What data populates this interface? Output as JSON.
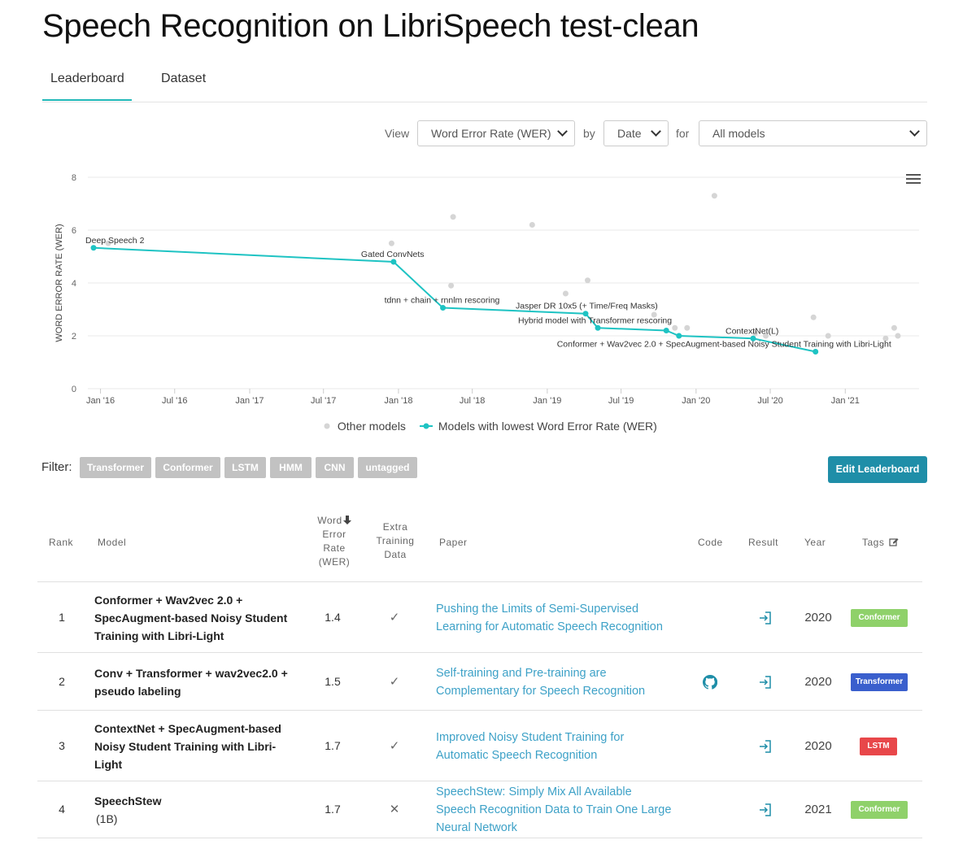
{
  "page": {
    "title": "Speech Recognition on LibriSpeech test-clean"
  },
  "tabs": [
    {
      "label": "Leaderboard"
    },
    {
      "label": "Dataset"
    }
  ],
  "controls": {
    "view_label": "View",
    "view_value": "Word Error Rate (WER)",
    "by_label": "by",
    "by_value": "Date",
    "for_label": "for",
    "for_value": "All models"
  },
  "legend": {
    "other": "Other models",
    "best": "Models with lowest Word Error Rate (WER)"
  },
  "colors": {
    "accent": "#21b8b8",
    "line": "#1ec3c3",
    "other_dot": "#d5d5d5",
    "button": "#1f8ea8",
    "link": "#3da1c7"
  },
  "chart_data": {
    "type": "line",
    "ylabel": "WORD ERROR RATE (WER)",
    "ylim": [
      0,
      8
    ],
    "yticks": [
      0,
      2,
      4,
      6,
      8
    ],
    "xlim": [
      "2015-12-01",
      "2021-07-01"
    ],
    "xticks": [
      {
        "date": "2016-01-01",
        "label": "Jan '16"
      },
      {
        "date": "2016-07-01",
        "label": "Jul '16"
      },
      {
        "date": "2017-01-01",
        "label": "Jan '17"
      },
      {
        "date": "2017-07-01",
        "label": "Jul '17"
      },
      {
        "date": "2018-01-01",
        "label": "Jan '18"
      },
      {
        "date": "2018-07-01",
        "label": "Jul '18"
      },
      {
        "date": "2019-01-01",
        "label": "Jan '19"
      },
      {
        "date": "2019-07-01",
        "label": "Jul '19"
      },
      {
        "date": "2020-01-01",
        "label": "Jan '20"
      },
      {
        "date": "2020-07-01",
        "label": "Jul '20"
      },
      {
        "date": "2021-01-01",
        "label": "Jan '21"
      }
    ],
    "grid": true,
    "legend_position": "bottom",
    "series": [
      {
        "name": "Models with lowest Word Error Rate (WER)",
        "points": [
          {
            "x": "2015-12-15",
            "y": 5.33,
            "label": "Deep Speech 2"
          },
          {
            "x": "2017-12-20",
            "y": 4.8,
            "label": "Gated ConvNets"
          },
          {
            "x": "2018-04-20",
            "y": 3.06,
            "label": "tdnn + chain + rnnlm rescoring"
          },
          {
            "x": "2019-04-05",
            "y": 2.84,
            "label": "Jasper DR 10x5 (+ Time/Freq Masks)"
          },
          {
            "x": "2019-05-05",
            "y": 2.3,
            "label": "Hybrid model with Transformer rescoring"
          },
          {
            "x": "2019-10-20",
            "y": 2.2,
            "label": ""
          },
          {
            "x": "2019-11-20",
            "y": 2.0,
            "label": ""
          },
          {
            "x": "2020-05-20",
            "y": 1.9,
            "label": "ContextNet(L)"
          },
          {
            "x": "2020-10-20",
            "y": 1.4,
            "label": "Conformer + Wav2vec 2.0 + SpecAugment-based Noisy Student Training with Libri-Light"
          }
        ]
      },
      {
        "name": "Other models",
        "points": [
          {
            "x": "2016-01-20",
            "y": 5.5
          },
          {
            "x": "2017-12-15",
            "y": 5.5
          },
          {
            "x": "2018-05-15",
            "y": 6.5
          },
          {
            "x": "2018-05-10",
            "y": 3.9
          },
          {
            "x": "2018-11-25",
            "y": 6.2
          },
          {
            "x": "2019-02-15",
            "y": 3.6
          },
          {
            "x": "2019-04-10",
            "y": 4.1
          },
          {
            "x": "2019-09-20",
            "y": 2.8
          },
          {
            "x": "2019-11-10",
            "y": 2.3
          },
          {
            "x": "2019-12-10",
            "y": 2.3
          },
          {
            "x": "2020-02-15",
            "y": 7.3
          },
          {
            "x": "2020-05-25",
            "y": 2.1
          },
          {
            "x": "2020-06-20",
            "y": 2.0
          },
          {
            "x": "2020-10-15",
            "y": 2.7
          },
          {
            "x": "2020-11-20",
            "y": 2.0
          },
          {
            "x": "2021-05-01",
            "y": 2.3
          },
          {
            "x": "2021-05-10",
            "y": 2.0
          },
          {
            "x": "2021-04-10",
            "y": 1.9
          }
        ]
      }
    ]
  },
  "filter": {
    "label": "Filter:",
    "chips": [
      "Transformer",
      "Conformer",
      "LSTM",
      "HMM",
      "CNN",
      "untagged"
    ]
  },
  "edit_button": {
    "label": "Edit Leaderboard"
  },
  "table": {
    "headers": {
      "rank": "Rank",
      "model": "Model",
      "wer_1": "Word",
      "wer_2": "Error",
      "wer_3": "Rate",
      "wer_4": "(WER)",
      "extra_1": "Extra",
      "extra_2": "Training",
      "extra_3": "Data",
      "paper": "Paper",
      "code": "Code",
      "result": "Result",
      "year": "Year",
      "tags": "Tags"
    },
    "rows": [
      {
        "rank": "1",
        "model": [
          "Conformer + Wav2vec 2.0 +",
          "SpecAugment-based Noisy Student",
          "Training with Libri-Light"
        ],
        "model_sub": "",
        "wer": "1.4",
        "extra": "✓",
        "paper": [
          "Pushing the Limits of Semi-Supervised",
          "Learning for Automatic Speech Recognition"
        ],
        "code": false,
        "year": "2020",
        "tag": "Conformer",
        "tag_color": "#8fd16a"
      },
      {
        "rank": "2",
        "model": [
          "Conv + Transformer + wav2vec2.0 +",
          "pseudo labeling"
        ],
        "model_sub": "",
        "wer": "1.5",
        "extra": "✓",
        "paper": [
          "Self-training and Pre-training are",
          "Complementary for Speech Recognition"
        ],
        "code": true,
        "year": "2020",
        "tag": "Transformer",
        "tag_color": "#3a5fcd"
      },
      {
        "rank": "3",
        "model": [
          "ContextNet + SpecAugment-based",
          "Noisy Student Training with Libri-",
          "Light"
        ],
        "model_sub": "",
        "wer": "1.7",
        "extra": "✓",
        "paper": [
          "Improved Noisy Student Training for",
          "Automatic Speech Recognition"
        ],
        "code": false,
        "year": "2020",
        "tag": "LSTM",
        "tag_color": "#e8474a"
      },
      {
        "rank": "4",
        "model": [
          "SpeechStew"
        ],
        "model_sub": "(1B)",
        "wer": "1.7",
        "extra": "✕",
        "paper": [
          "SpeechStew: Simply Mix All Available",
          "Speech Recognition Data to Train One Large",
          "Neural Network"
        ],
        "code": false,
        "year": "2021",
        "tag": "Conformer",
        "tag_color": "#8fd16a"
      }
    ]
  }
}
